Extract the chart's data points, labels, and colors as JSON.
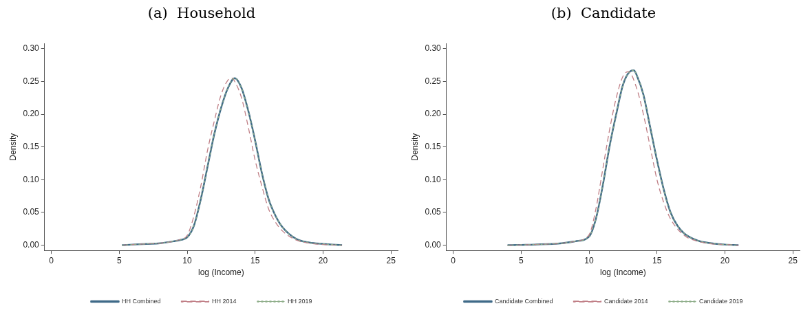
{
  "chart_data": [
    {
      "type": "line",
      "title": "(a)  Household",
      "xlabel": "log (Income)",
      "ylabel": "Density",
      "xlim": [
        -0.5,
        25.5
      ],
      "xticks": [
        0,
        5,
        10,
        15,
        20,
        25
      ],
      "ylim": [
        -0.008,
        0.308
      ],
      "yticks": [
        {
          "value": 0,
          "label": "0.00"
        },
        {
          "value": 0.05,
          "label": "0.05"
        },
        {
          "value": 0.1,
          "label": "0.10"
        },
        {
          "value": 0.15,
          "label": "0.15"
        },
        {
          "value": 0.2,
          "label": "0.20"
        },
        {
          "value": 0.25,
          "label": "0.25"
        },
        {
          "value": 0.3,
          "label": "0.30"
        }
      ],
      "grid": false,
      "legend": "bottom",
      "marker": "none",
      "series": [
        {
          "name": "HH Combined",
          "color": "#3f6a88",
          "line_style": "solid",
          "x": [
            5.2,
            6,
            7,
            8,
            9,
            9.5,
            10,
            10.5,
            11,
            11.5,
            12,
            12.5,
            13,
            13.5,
            14,
            14.5,
            15,
            15.5,
            16,
            16.5,
            17,
            18,
            19,
            20,
            21.4
          ],
          "values": [
            0,
            0.001,
            0.002,
            0.003,
            0.006,
            0.008,
            0.012,
            0.03,
            0.07,
            0.12,
            0.17,
            0.21,
            0.24,
            0.255,
            0.24,
            0.205,
            0.16,
            0.11,
            0.07,
            0.045,
            0.028,
            0.01,
            0.004,
            0.002,
            0
          ]
        },
        {
          "name": "HH 2014",
          "color": "#c07f86",
          "line_style": "dashed",
          "x": [
            5.2,
            6,
            7,
            8,
            9,
            9.5,
            10,
            10.5,
            11,
            11.5,
            12,
            12.5,
            13,
            13.3,
            13.5,
            14,
            14.5,
            15,
            15.5,
            16,
            16.5,
            17,
            18,
            19,
            20,
            21.4
          ],
          "values": [
            0,
            0.001,
            0.002,
            0.003,
            0.006,
            0.009,
            0.015,
            0.045,
            0.09,
            0.145,
            0.19,
            0.23,
            0.252,
            0.255,
            0.25,
            0.225,
            0.18,
            0.13,
            0.09,
            0.055,
            0.035,
            0.022,
            0.008,
            0.003,
            0.001,
            0
          ]
        },
        {
          "name": "HH 2019",
          "color": "#8fae8a",
          "line_style": "dotted",
          "x": [
            5.2,
            6,
            7,
            8,
            9,
            9.5,
            10,
            10.5,
            11,
            11.5,
            12,
            12.5,
            13,
            13.5,
            14,
            14.5,
            15,
            15.5,
            16,
            16.5,
            17,
            18,
            19,
            20,
            21.4
          ],
          "values": [
            0,
            0.001,
            0.002,
            0.003,
            0.006,
            0.008,
            0.012,
            0.03,
            0.07,
            0.12,
            0.17,
            0.21,
            0.24,
            0.255,
            0.24,
            0.205,
            0.16,
            0.11,
            0.07,
            0.045,
            0.028,
            0.01,
            0.004,
            0.002,
            0
          ]
        }
      ]
    },
    {
      "type": "line",
      "title": "(b)  Candidate",
      "xlabel": "log (Income)",
      "ylabel": "Density",
      "xlim": [
        -0.5,
        25.5
      ],
      "xticks": [
        0,
        5,
        10,
        15,
        20,
        25
      ],
      "ylim": [
        -0.008,
        0.308
      ],
      "yticks": [
        {
          "value": 0,
          "label": "0.00"
        },
        {
          "value": 0.05,
          "label": "0.05"
        },
        {
          "value": 0.1,
          "label": "0.10"
        },
        {
          "value": 0.15,
          "label": "0.15"
        },
        {
          "value": 0.2,
          "label": "0.20"
        },
        {
          "value": 0.25,
          "label": "0.25"
        },
        {
          "value": 0.3,
          "label": "0.30"
        }
      ],
      "grid": false,
      "legend": "bottom",
      "marker": "none",
      "series": [
        {
          "name": "Candidate Combined",
          "color": "#3f6a88",
          "line_style": "solid",
          "x": [
            4,
            6,
            8,
            9,
            10,
            10.5,
            11,
            11.5,
            12,
            12.5,
            13,
            13.3,
            13.5,
            14,
            14.5,
            15,
            15.5,
            16,
            16.5,
            17,
            18,
            19,
            20,
            21
          ],
          "values": [
            0,
            0.001,
            0.003,
            0.006,
            0.013,
            0.04,
            0.09,
            0.15,
            0.2,
            0.245,
            0.265,
            0.267,
            0.26,
            0.23,
            0.18,
            0.13,
            0.085,
            0.05,
            0.03,
            0.018,
            0.007,
            0.003,
            0.001,
            0
          ]
        },
        {
          "name": "Candidate 2014",
          "color": "#c07f86",
          "line_style": "dashed",
          "x": [
            4,
            6,
            8,
            9,
            10,
            10.5,
            11,
            11.5,
            12,
            12.5,
            12.9,
            13.5,
            14,
            14.5,
            15,
            15.5,
            16,
            17,
            18,
            19,
            20,
            21
          ],
          "values": [
            0,
            0.001,
            0.003,
            0.006,
            0.016,
            0.055,
            0.115,
            0.175,
            0.225,
            0.258,
            0.265,
            0.24,
            0.2,
            0.15,
            0.1,
            0.065,
            0.04,
            0.015,
            0.006,
            0.002,
            0.001,
            0
          ]
        },
        {
          "name": "Candidate 2019",
          "color": "#8fae8a",
          "line_style": "dotted",
          "x": [
            4,
            6,
            8,
            9,
            10,
            10.5,
            11,
            11.5,
            12,
            12.5,
            13,
            13.3,
            13.5,
            14,
            14.5,
            15,
            15.5,
            16,
            16.5,
            17,
            18,
            19,
            20,
            21
          ],
          "values": [
            0,
            0.001,
            0.003,
            0.006,
            0.013,
            0.04,
            0.09,
            0.15,
            0.2,
            0.245,
            0.265,
            0.267,
            0.26,
            0.23,
            0.18,
            0.13,
            0.085,
            0.05,
            0.03,
            0.018,
            0.007,
            0.003,
            0.001,
            0
          ]
        }
      ]
    }
  ]
}
